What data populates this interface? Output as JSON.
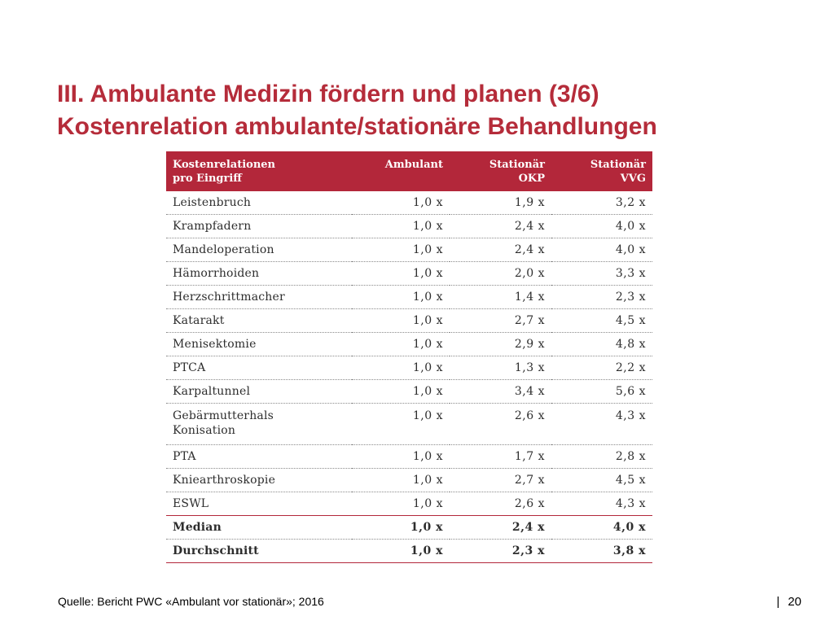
{
  "slide": {
    "title_line1": "III. Ambulante Medizin fördern und planen (3/6)",
    "title_line2": "Kostenrelation ambulante/stationäre Behandlungen",
    "source": "Quelle: Bericht PWC «Ambulant vor stationär»; 2016",
    "page_separator": "|",
    "page_number": "20",
    "accent_color": "#b52c3a",
    "table_header_color": "#b3273a"
  },
  "table": {
    "headers": [
      {
        "line1": "Kostenrelationen",
        "line2": "pro Eingriff"
      },
      {
        "line1": "Ambulant",
        "line2": ""
      },
      {
        "line1": "Stationär",
        "line2": "OKP"
      },
      {
        "line1": "Stationär",
        "line2": "VVG"
      }
    ],
    "rows": [
      {
        "label": "Leistenbruch",
        "label2": "",
        "ambulant": "1,0 x",
        "okp": "1,9 x",
        "vvg": "3,2 x"
      },
      {
        "label": "Krampfadern",
        "label2": "",
        "ambulant": "1,0 x",
        "okp": "2,4 x",
        "vvg": "4,0 x"
      },
      {
        "label": "Mandeloperation",
        "label2": "",
        "ambulant": "1,0 x",
        "okp": "2,4 x",
        "vvg": "4,0 x"
      },
      {
        "label": "Hämorrhoiden",
        "label2": "",
        "ambulant": "1,0 x",
        "okp": "2,0 x",
        "vvg": "3,3 x"
      },
      {
        "label": "Herzschrittmacher",
        "label2": "",
        "ambulant": "1,0 x",
        "okp": "1,4 x",
        "vvg": "2,3 x"
      },
      {
        "label": "Katarakt",
        "label2": "",
        "ambulant": "1,0 x",
        "okp": "2,7 x",
        "vvg": "4,5 x"
      },
      {
        "label": "Menisektomie",
        "label2": "",
        "ambulant": "1,0 x",
        "okp": "2,9 x",
        "vvg": "4,8 x"
      },
      {
        "label": "PTCA",
        "label2": "",
        "ambulant": "1,0 x",
        "okp": "1,3 x",
        "vvg": "2,2 x"
      },
      {
        "label": "Karpaltunnel",
        "label2": "",
        "ambulant": "1,0 x",
        "okp": "3,4 x",
        "vvg": "5,6 x"
      },
      {
        "label": "Gebärmutterhals",
        "label2": "Konisation",
        "ambulant": "1,0 x",
        "okp": "2,6 x",
        "vvg": "4,3 x"
      },
      {
        "label": "PTA",
        "label2": "",
        "ambulant": "1,0 x",
        "okp": "1,7 x",
        "vvg": "2,8 x"
      },
      {
        "label": "Kniearthroskopie",
        "label2": "",
        "ambulant": "1,0 x",
        "okp": "2,7 x",
        "vvg": "4,5 x"
      },
      {
        "label": "ESWL",
        "label2": "",
        "ambulant": "1,0 x",
        "okp": "2,6 x",
        "vvg": "4,3 x"
      }
    ],
    "summary": [
      {
        "label": "Median",
        "ambulant": "1,0 x",
        "okp": "2,4 x",
        "vvg": "4,0 x"
      },
      {
        "label": "Durchschnitt",
        "ambulant": "1,0 x",
        "okp": "2,3 x",
        "vvg": "3,8 x"
      }
    ]
  }
}
